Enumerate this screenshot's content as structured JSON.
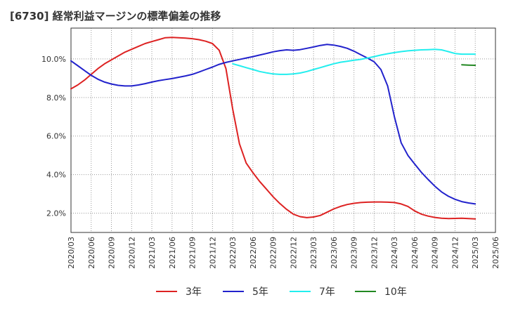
{
  "chart_data": {
    "type": "line",
    "title": "[6730]  経常利益マージンの標準偏差の推移",
    "xlabel": "",
    "ylabel": "",
    "ylim": [
      1.0,
      11.6
    ],
    "y_ticks": [
      2.0,
      4.0,
      6.0,
      8.0,
      10.0
    ],
    "y_tick_labels": [
      "2.0%",
      "4.0%",
      "6.0%",
      "8.0%",
      "10.0%"
    ],
    "x_tick_labels": [
      "2020/03",
      "2020/06",
      "2020/09",
      "2020/12",
      "2021/03",
      "2021/06",
      "2021/09",
      "2021/12",
      "2022/03",
      "2022/06",
      "2022/09",
      "2022/12",
      "2023/03",
      "2023/06",
      "2023/09",
      "2023/12",
      "2024/03",
      "2024/06",
      "2024/09",
      "2024/12",
      "2025/03",
      "2025/06"
    ],
    "grid": true,
    "legend_position": "bottom",
    "colors": {
      "3年": "#dd2222",
      "5年": "#2222cc",
      "7年": "#22eeee",
      "10年": "#228822"
    },
    "series": [
      {
        "name": "3年",
        "x": [
          "2020/03",
          "2020/04",
          "2020/05",
          "2020/06",
          "2020/07",
          "2020/08",
          "2020/09",
          "2020/10",
          "2020/11",
          "2020/12",
          "2021/01",
          "2021/02",
          "2021/03",
          "2021/04",
          "2021/05",
          "2021/06",
          "2021/07",
          "2021/08",
          "2021/09",
          "2021/10",
          "2021/11",
          "2021/12",
          "2022/01",
          "2022/02",
          "2022/03",
          "2022/04",
          "2022/05",
          "2022/06",
          "2022/07",
          "2022/08",
          "2022/09",
          "2022/10",
          "2022/11",
          "2022/12",
          "2023/01",
          "2023/02",
          "2023/03",
          "2023/04",
          "2023/05",
          "2023/06",
          "2023/07",
          "2023/08",
          "2023/09",
          "2023/10",
          "2023/11",
          "2023/12",
          "2024/01",
          "2024/02",
          "2024/03",
          "2024/04",
          "2024/05",
          "2024/06",
          "2024/07",
          "2024/08",
          "2024/09",
          "2024/10",
          "2024/11",
          "2024/12",
          "2025/01",
          "2025/02",
          "2025/03"
        ],
        "values": [
          8.45,
          8.65,
          8.9,
          9.2,
          9.5,
          9.75,
          9.95,
          10.15,
          10.35,
          10.5,
          10.65,
          10.8,
          10.9,
          11.0,
          11.1,
          11.12,
          11.1,
          11.08,
          11.05,
          11.0,
          10.92,
          10.8,
          10.45,
          9.5,
          7.4,
          5.6,
          4.6,
          4.1,
          3.65,
          3.25,
          2.85,
          2.5,
          2.2,
          1.95,
          1.82,
          1.77,
          1.8,
          1.88,
          2.05,
          2.22,
          2.35,
          2.45,
          2.51,
          2.55,
          2.57,
          2.58,
          2.58,
          2.57,
          2.55,
          2.48,
          2.35,
          2.12,
          1.95,
          1.85,
          1.78,
          1.74,
          1.72,
          1.73,
          1.74,
          1.72,
          1.7
        ]
      },
      {
        "name": "5年",
        "x": [
          "2020/03",
          "2020/04",
          "2020/05",
          "2020/06",
          "2020/07",
          "2020/08",
          "2020/09",
          "2020/10",
          "2020/11",
          "2020/12",
          "2021/01",
          "2021/02",
          "2021/03",
          "2021/04",
          "2021/05",
          "2021/06",
          "2021/07",
          "2021/08",
          "2021/09",
          "2021/10",
          "2021/11",
          "2021/12",
          "2022/01",
          "2022/02",
          "2022/03",
          "2022/04",
          "2022/05",
          "2022/06",
          "2022/07",
          "2022/08",
          "2022/09",
          "2022/10",
          "2022/11",
          "2022/12",
          "2023/01",
          "2023/02",
          "2023/03",
          "2023/04",
          "2023/05",
          "2023/06",
          "2023/07",
          "2023/08",
          "2023/09",
          "2023/10",
          "2023/11",
          "2023/12",
          "2024/01",
          "2024/02",
          "2024/03",
          "2024/04",
          "2024/05",
          "2024/06",
          "2024/07",
          "2024/08",
          "2024/09",
          "2024/10",
          "2024/11",
          "2024/12",
          "2025/01",
          "2025/02",
          "2025/03"
        ],
        "values": [
          9.9,
          9.65,
          9.4,
          9.15,
          8.95,
          8.8,
          8.7,
          8.63,
          8.6,
          8.6,
          8.65,
          8.72,
          8.8,
          8.87,
          8.93,
          8.98,
          9.05,
          9.12,
          9.2,
          9.32,
          9.45,
          9.58,
          9.72,
          9.82,
          9.9,
          9.97,
          10.05,
          10.12,
          10.2,
          10.28,
          10.37,
          10.43,
          10.47,
          10.45,
          10.48,
          10.55,
          10.62,
          10.7,
          10.75,
          10.72,
          10.65,
          10.55,
          10.4,
          10.22,
          10.05,
          9.85,
          9.45,
          8.6,
          7.0,
          5.65,
          5.0,
          4.55,
          4.12,
          3.75,
          3.4,
          3.1,
          2.88,
          2.72,
          2.6,
          2.53,
          2.48
        ]
      },
      {
        "name": "7年",
        "x": [
          "2022/03",
          "2022/04",
          "2022/05",
          "2022/06",
          "2022/07",
          "2022/08",
          "2022/09",
          "2022/10",
          "2022/11",
          "2022/12",
          "2023/01",
          "2023/02",
          "2023/03",
          "2023/04",
          "2023/05",
          "2023/06",
          "2023/07",
          "2023/08",
          "2023/09",
          "2023/10",
          "2023/11",
          "2023/12",
          "2024/01",
          "2024/02",
          "2024/03",
          "2024/04",
          "2024/05",
          "2024/06",
          "2024/07",
          "2024/08",
          "2024/09",
          "2024/10",
          "2024/11",
          "2024/12",
          "2025/01",
          "2025/02",
          "2025/03"
        ],
        "values": [
          9.75,
          9.65,
          9.55,
          9.45,
          9.35,
          9.28,
          9.22,
          9.2,
          9.2,
          9.22,
          9.27,
          9.35,
          9.45,
          9.55,
          9.65,
          9.75,
          9.83,
          9.88,
          9.93,
          9.98,
          10.05,
          10.12,
          10.2,
          10.27,
          10.33,
          10.38,
          10.42,
          10.45,
          10.47,
          10.48,
          10.5,
          10.47,
          10.38,
          10.28,
          10.25,
          10.25,
          10.25
        ]
      },
      {
        "name": "10年",
        "x": [
          "2025/01",
          "2025/02",
          "2025/03"
        ],
        "values": [
          9.7,
          9.68,
          9.67
        ]
      }
    ]
  }
}
